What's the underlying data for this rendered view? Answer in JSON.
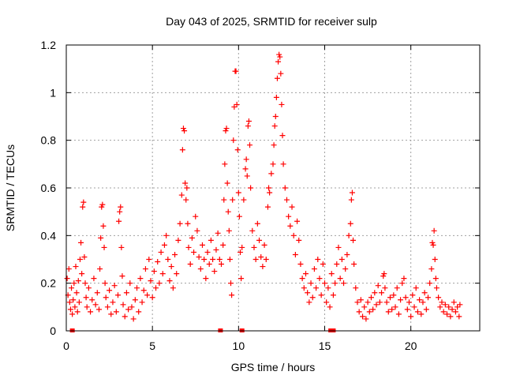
{
  "colors": {
    "series": "#ff0000",
    "frame": "#000000",
    "grid": "#a0a0a0"
  },
  "chart_data": {
    "type": "scatter",
    "title": "Day 043 of 2025, SRMTID for receiver sulp",
    "xlabel": "GPS time / hours",
    "ylabel": "SRMTID / TECUs",
    "xlim": [
      0,
      24
    ],
    "ylim": [
      0,
      1.2
    ],
    "xticks": [
      0,
      5,
      10,
      15,
      20
    ],
    "xtick_labels": [
      "0",
      "5",
      "10",
      "15",
      "20"
    ],
    "yticks": [
      0,
      0.2,
      0.4,
      0.6,
      0.8,
      1.0,
      1.2
    ],
    "ytick_labels": [
      "0",
      "0.2",
      "0.4",
      "0.6",
      "0.8",
      "1",
      "1.2"
    ],
    "grid": true,
    "marker": "plus",
    "series": [
      {
        "name": "SRMTID",
        "marker": "plus",
        "points": [
          [
            0.05,
            0.22
          ],
          [
            0.1,
            0.15
          ],
          [
            0.15,
            0.26
          ],
          [
            0.2,
            0.12
          ],
          [
            0.25,
            0.09
          ],
          [
            0.3,
            0.18
          ],
          [
            0.35,
            0.07
          ],
          [
            0.4,
            0.13
          ],
          [
            0.45,
            0.2
          ],
          [
            0.5,
            0.1
          ],
          [
            0.55,
            0.27
          ],
          [
            0.6,
            0.16
          ],
          [
            0.65,
            0.08
          ],
          [
            0.7,
            0.21
          ],
          [
            0.75,
            0.12
          ],
          [
            0.8,
            0.3
          ],
          [
            0.85,
            0.37
          ],
          [
            0.9,
            0.24
          ],
          [
            0.95,
            0.52
          ],
          [
            1.0,
            0.54
          ],
          [
            1.05,
            0.31
          ],
          [
            1.1,
            0.2
          ],
          [
            1.15,
            0.14
          ],
          [
            1.2,
            0.1
          ],
          [
            1.3,
            0.18
          ],
          [
            1.4,
            0.08
          ],
          [
            1.5,
            0.13
          ],
          [
            1.6,
            0.22
          ],
          [
            1.7,
            0.11
          ],
          [
            1.8,
            0.16
          ],
          [
            1.9,
            0.09
          ],
          [
            1.95,
            0.26
          ],
          [
            2.0,
            0.39
          ],
          [
            2.05,
            0.52
          ],
          [
            2.1,
            0.53
          ],
          [
            2.15,
            0.44
          ],
          [
            2.2,
            0.35
          ],
          [
            2.25,
            0.2
          ],
          [
            2.3,
            0.14
          ],
          [
            2.4,
            0.1
          ],
          [
            2.5,
            0.17
          ],
          [
            2.6,
            0.07
          ],
          [
            2.7,
            0.12
          ],
          [
            2.8,
            0.19
          ],
          [
            2.9,
            0.08
          ],
          [
            3.0,
            0.15
          ],
          [
            3.05,
            0.46
          ],
          [
            3.1,
            0.5
          ],
          [
            3.15,
            0.52
          ],
          [
            3.2,
            0.35
          ],
          [
            3.25,
            0.23
          ],
          [
            3.3,
            0.11
          ],
          [
            3.4,
            0.06
          ],
          [
            3.5,
            0.16
          ],
          [
            3.6,
            0.09
          ],
          [
            3.7,
            0.2
          ],
          [
            3.8,
            0.1
          ],
          [
            3.9,
            0.05
          ],
          [
            4.0,
            0.13
          ],
          [
            4.1,
            0.18
          ],
          [
            4.2,
            0.08
          ],
          [
            4.3,
            0.22
          ],
          [
            4.4,
            0.12
          ],
          [
            4.5,
            0.17
          ],
          [
            4.6,
            0.26
          ],
          [
            4.7,
            0.15
          ],
          [
            4.8,
            0.3
          ],
          [
            4.9,
            0.21
          ],
          [
            5.0,
            0.14
          ],
          [
            5.1,
            0.25
          ],
          [
            5.2,
            0.18
          ],
          [
            5.3,
            0.29
          ],
          [
            5.4,
            0.2
          ],
          [
            5.5,
            0.33
          ],
          [
            5.6,
            0.24
          ],
          [
            5.7,
            0.36
          ],
          [
            5.8,
            0.4
          ],
          [
            5.9,
            0.3
          ],
          [
            6.0,
            0.21
          ],
          [
            6.1,
            0.27
          ],
          [
            6.2,
            0.18
          ],
          [
            6.3,
            0.32
          ],
          [
            6.4,
            0.24
          ],
          [
            6.5,
            0.38
          ],
          [
            6.6,
            0.45
          ],
          [
            6.7,
            0.57
          ],
          [
            6.75,
            0.76
          ],
          [
            6.8,
            0.85
          ],
          [
            6.85,
            0.84
          ],
          [
            6.9,
            0.62
          ],
          [
            6.95,
            0.55
          ],
          [
            7.0,
            0.6
          ],
          [
            7.05,
            0.45
          ],
          [
            7.1,
            0.35
          ],
          [
            7.2,
            0.28
          ],
          [
            7.3,
            0.39
          ],
          [
            7.4,
            0.33
          ],
          [
            7.5,
            0.48
          ],
          [
            7.6,
            0.42
          ],
          [
            7.7,
            0.31
          ],
          [
            7.8,
            0.26
          ],
          [
            7.9,
            0.36
          ],
          [
            8.0,
            0.3
          ],
          [
            8.1,
            0.22
          ],
          [
            8.2,
            0.33
          ],
          [
            8.3,
            0.28
          ],
          [
            8.4,
            0.38
          ],
          [
            8.5,
            0.3
          ],
          [
            8.6,
            0.25
          ],
          [
            8.7,
            0.34
          ],
          [
            8.8,
            0.41
          ],
          [
            8.9,
            0.3
          ],
          [
            9.0,
            0.28
          ],
          [
            9.1,
            0.36
          ],
          [
            9.15,
            0.55
          ],
          [
            9.2,
            0.7
          ],
          [
            9.25,
            0.84
          ],
          [
            9.3,
            0.85
          ],
          [
            9.35,
            0.62
          ],
          [
            9.4,
            0.5
          ],
          [
            9.45,
            0.42
          ],
          [
            9.5,
            0.3
          ],
          [
            9.55,
            0.2
          ],
          [
            9.6,
            0.15
          ],
          [
            9.65,
            0.55
          ],
          [
            9.7,
            0.8
          ],
          [
            9.75,
            0.94
          ],
          [
            9.8,
            1.09
          ],
          [
            9.85,
            1.09
          ],
          [
            9.9,
            0.95
          ],
          [
            9.95,
            0.76
          ],
          [
            10.0,
            0.58
          ],
          [
            10.05,
            0.48
          ],
          [
            10.1,
            0.33
          ],
          [
            10.15,
            0.22
          ],
          [
            10.2,
            0.35
          ],
          [
            10.3,
            0.55
          ],
          [
            10.4,
            0.68
          ],
          [
            10.45,
            0.72
          ],
          [
            10.5,
            0.65
          ],
          [
            10.55,
            0.86
          ],
          [
            10.6,
            0.88
          ],
          [
            10.65,
            0.78
          ],
          [
            10.7,
            0.6
          ],
          [
            10.8,
            0.42
          ],
          [
            10.9,
            0.35
          ],
          [
            11.0,
            0.3
          ],
          [
            11.1,
            0.45
          ],
          [
            11.2,
            0.38
          ],
          [
            11.3,
            0.31
          ],
          [
            11.4,
            0.27
          ],
          [
            11.5,
            0.36
          ],
          [
            11.6,
            0.3
          ],
          [
            11.7,
            0.52
          ],
          [
            11.75,
            0.6
          ],
          [
            11.8,
            0.58
          ],
          [
            11.9,
            0.66
          ],
          [
            12.0,
            0.7
          ],
          [
            12.05,
            0.78
          ],
          [
            12.1,
            0.86
          ],
          [
            12.15,
            0.9
          ],
          [
            12.2,
            0.98
          ],
          [
            12.25,
            1.06
          ],
          [
            12.3,
            1.13
          ],
          [
            12.35,
            1.16
          ],
          [
            12.4,
            1.15
          ],
          [
            12.45,
            1.08
          ],
          [
            12.5,
            0.95
          ],
          [
            12.55,
            0.82
          ],
          [
            12.6,
            0.7
          ],
          [
            12.7,
            0.6
          ],
          [
            12.8,
            0.55
          ],
          [
            12.9,
            0.48
          ],
          [
            13.0,
            0.44
          ],
          [
            13.1,
            0.52
          ],
          [
            13.2,
            0.4
          ],
          [
            13.3,
            0.32
          ],
          [
            13.4,
            0.46
          ],
          [
            13.5,
            0.38
          ],
          [
            13.6,
            0.28
          ],
          [
            13.7,
            0.22
          ],
          [
            13.8,
            0.18
          ],
          [
            13.9,
            0.24
          ],
          [
            14.0,
            0.16
          ],
          [
            14.1,
            0.12
          ],
          [
            14.2,
            0.2
          ],
          [
            14.3,
            0.14
          ],
          [
            14.4,
            0.26
          ],
          [
            14.5,
            0.18
          ],
          [
            14.6,
            0.3
          ],
          [
            14.7,
            0.22
          ],
          [
            14.8,
            0.15
          ],
          [
            14.9,
            0.28
          ],
          [
            15.0,
            0.2
          ],
          [
            15.1,
            0.12
          ],
          [
            15.2,
            0.18
          ],
          [
            15.3,
            0.1
          ],
          [
            15.4,
            0.24
          ],
          [
            15.5,
            0.15
          ],
          [
            15.6,
            0.2
          ],
          [
            15.7,
            0.28
          ],
          [
            15.8,
            0.35
          ],
          [
            15.9,
            0.22
          ],
          [
            16.0,
            0.3
          ],
          [
            16.1,
            0.2
          ],
          [
            16.2,
            0.26
          ],
          [
            16.3,
            0.32
          ],
          [
            16.4,
            0.4
          ],
          [
            16.5,
            0.45
          ],
          [
            16.55,
            0.55
          ],
          [
            16.6,
            0.58
          ],
          [
            16.65,
            0.38
          ],
          [
            16.7,
            0.28
          ],
          [
            16.8,
            0.18
          ],
          [
            16.9,
            0.12
          ],
          [
            17.0,
            0.08
          ],
          [
            17.1,
            0.13
          ],
          [
            17.2,
            0.06
          ],
          [
            17.3,
            0.1
          ],
          [
            17.4,
            0.05
          ],
          [
            17.5,
            0.12
          ],
          [
            17.6,
            0.08
          ],
          [
            17.7,
            0.14
          ],
          [
            17.8,
            0.09
          ],
          [
            17.9,
            0.16
          ],
          [
            18.0,
            0.11
          ],
          [
            18.1,
            0.19
          ],
          [
            18.2,
            0.12
          ],
          [
            18.3,
            0.16
          ],
          [
            18.4,
            0.23
          ],
          [
            18.45,
            0.24
          ],
          [
            18.5,
            0.18
          ],
          [
            18.6,
            0.12
          ],
          [
            18.7,
            0.08
          ],
          [
            18.8,
            0.14
          ],
          [
            18.9,
            0.09
          ],
          [
            19.0,
            0.15
          ],
          [
            19.1,
            0.1
          ],
          [
            19.2,
            0.18
          ],
          [
            19.3,
            0.07
          ],
          [
            19.4,
            0.13
          ],
          [
            19.5,
            0.2
          ],
          [
            19.6,
            0.22
          ],
          [
            19.7,
            0.14
          ],
          [
            19.8,
            0.09
          ],
          [
            19.9,
            0.12
          ],
          [
            20.0,
            0.06
          ],
          [
            20.1,
            0.15
          ],
          [
            20.2,
            0.1
          ],
          [
            20.3,
            0.18
          ],
          [
            20.4,
            0.08
          ],
          [
            20.5,
            0.13
          ],
          [
            20.6,
            0.07
          ],
          [
            20.7,
            0.12
          ],
          [
            20.8,
            0.16
          ],
          [
            20.9,
            0.09
          ],
          [
            21.0,
            0.14
          ],
          [
            21.1,
            0.2
          ],
          [
            21.2,
            0.26
          ],
          [
            21.25,
            0.37
          ],
          [
            21.3,
            0.36
          ],
          [
            21.35,
            0.42
          ],
          [
            21.4,
            0.3
          ],
          [
            21.45,
            0.22
          ],
          [
            21.5,
            0.18
          ],
          [
            21.6,
            0.14
          ],
          [
            21.7,
            0.1
          ],
          [
            21.8,
            0.12
          ],
          [
            21.9,
            0.08
          ],
          [
            22.0,
            0.11
          ],
          [
            22.1,
            0.07
          ],
          [
            22.2,
            0.1
          ],
          [
            22.3,
            0.06
          ],
          [
            22.4,
            0.09
          ],
          [
            22.5,
            0.12
          ],
          [
            22.6,
            0.08
          ],
          [
            22.7,
            0.1
          ],
          [
            22.8,
            0.06
          ],
          [
            22.85,
            0.11
          ]
        ]
      }
    ]
  }
}
